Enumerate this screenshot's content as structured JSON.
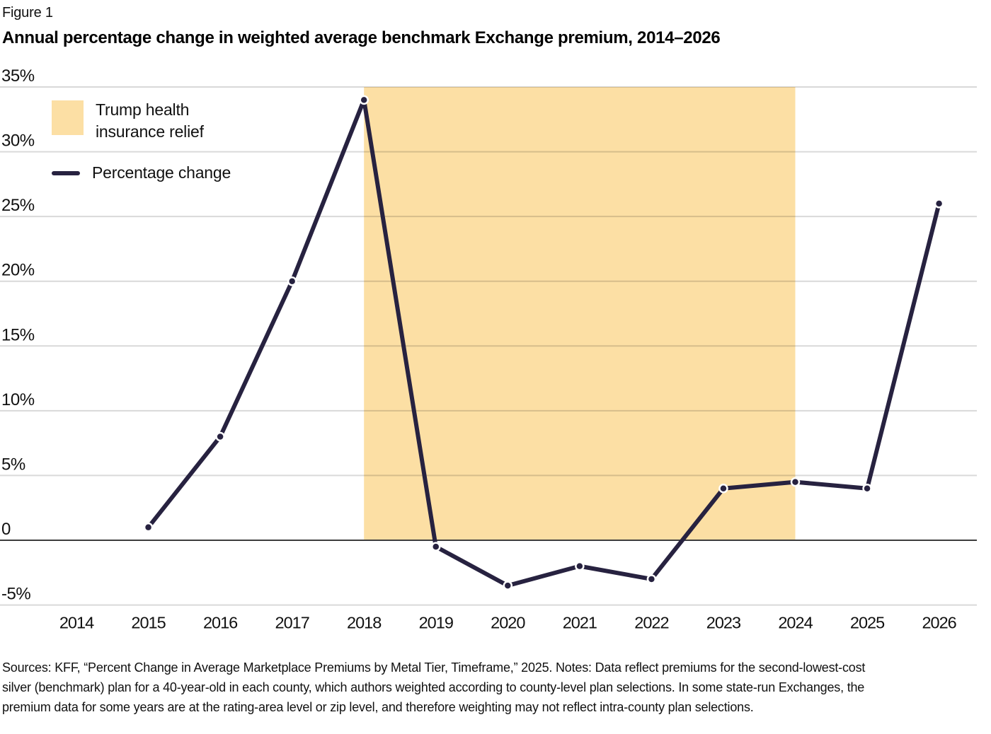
{
  "figure_label": "Figure 1",
  "title": "Annual percentage change in weighted average benchmark Exchange premium, 2014–2026",
  "legend": {
    "band_label": "Trump health insurance relief",
    "line_label": "Percentage change"
  },
  "colors": {
    "line": "#272240",
    "band": "#FCDFA4",
    "gridline": "rgba(0,0,0,0.15)",
    "zero_line": "#3D3D3D",
    "text": "#111111"
  },
  "chart_data": {
    "type": "line",
    "title": "Annual percentage change in weighted average benchmark Exchange premium, 2014–2026",
    "x": [
      2015,
      2016,
      2017,
      2018,
      2019,
      2020,
      2021,
      2022,
      2023,
      2024,
      2025,
      2026
    ],
    "series": [
      {
        "name": "Percentage change",
        "values": [
          1,
          8,
          20,
          34,
          -0.5,
          -3.5,
          -2,
          -3,
          4,
          4.5,
          4,
          26
        ]
      }
    ],
    "x_ticks": [
      "2014",
      "2015",
      "2016",
      "2017",
      "2018",
      "2019",
      "2020",
      "2021",
      "2022",
      "2023",
      "2024",
      "2025",
      "2026"
    ],
    "y_ticks": [
      {
        "label": "35%",
        "value": 35
      },
      {
        "label": "30%",
        "value": 30
      },
      {
        "label": "25%",
        "value": 25
      },
      {
        "label": "20%",
        "value": 20
      },
      {
        "label": "15%",
        "value": 15
      },
      {
        "label": "10%",
        "value": 10
      },
      {
        "label": "5%",
        "value": 5
      },
      {
        "label": "0",
        "value": 0
      },
      {
        "label": "-5%",
        "value": -5
      }
    ],
    "xlim": [
      2014,
      2026
    ],
    "ylim": [
      -5,
      35
    ],
    "grid": true,
    "legend_position": "top-left",
    "band": {
      "label": "Trump health insurance relief",
      "from_x": 2018,
      "to_x": 2024,
      "from_value": 0,
      "to_value": 35
    }
  },
  "footer_lines": [
    "Sources: KFF, “Percent Change in Average Marketplace Premiums by Metal Tier, Timeframe,” 2025. Notes: Data reflect premiums for the second-lowest-cost",
    "silver (benchmark) plan for a 40-year-old in each county, which authors weighted according to county-level plan selections. In some state-run Exchanges, the",
    "premium data for some years are at the rating-area level or zip level, and therefore weighting may not reflect intra-county plan selections."
  ]
}
